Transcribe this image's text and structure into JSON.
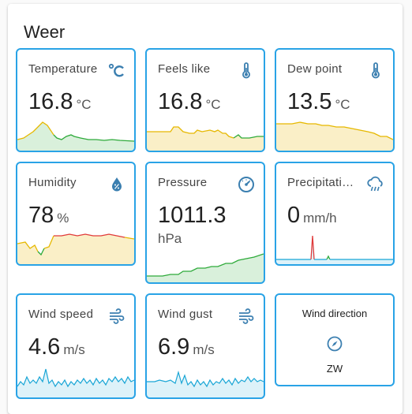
{
  "panel": {
    "title": "Weer"
  },
  "sensors": {
    "temperature": {
      "label": "Temperature",
      "value": "16.8",
      "unit": "°C",
      "icon": "celsius-icon",
      "graph_color": "#e6b800"
    },
    "feels_like": {
      "label": "Feels like",
      "value": "16.8",
      "unit": "°C",
      "icon": "thermometer-icon",
      "graph_color": "#e6b800"
    },
    "dew_point": {
      "label": "Dew point",
      "value": "13.5",
      "unit": "°C",
      "icon": "thermometer-icon",
      "graph_color": "#e6b800"
    },
    "humidity": {
      "label": "Humidity",
      "value": "78",
      "unit": "%",
      "icon": "water-percent-icon",
      "graph_color": "#e6b800"
    },
    "pressure": {
      "label": "Pressure",
      "value": "1011.3",
      "unit": "hPa",
      "icon": "gauge-icon",
      "graph_color": "#2eaa3a"
    },
    "precipitation": {
      "label": "Precipitati…",
      "value": "0",
      "unit": "mm/h",
      "icon": "weather-pouring-icon",
      "graph_color": "#1aa6d6"
    },
    "wind_speed": {
      "label": "Wind speed",
      "value": "4.6",
      "unit": "m/s",
      "icon": "weather-windy-icon",
      "graph_color": "#1aa6d6"
    },
    "wind_gust": {
      "label": "Wind gust",
      "value": "6.9",
      "unit": "m/s",
      "icon": "weather-windy-icon",
      "graph_color": "#1aa6d6"
    }
  },
  "wind_direction": {
    "label": "Wind direction",
    "value": "ZW",
    "icon": "compass-icon"
  },
  "colors": {
    "accent": "#29a3e6",
    "icon": "#3b7fb0",
    "green": "#2eaa3a",
    "yellow": "#e6b800",
    "red": "#e03a3a",
    "blue": "#1aa6d6"
  }
}
